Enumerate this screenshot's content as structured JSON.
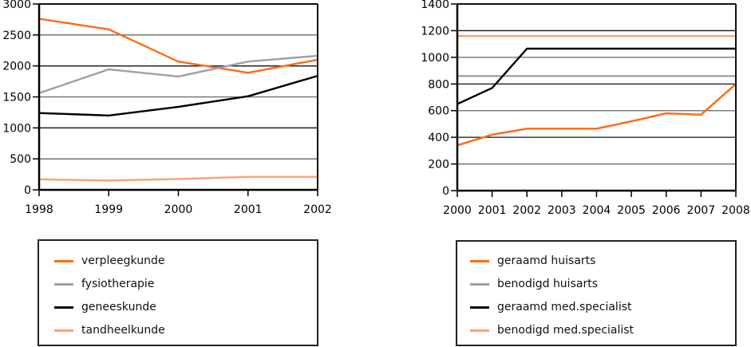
{
  "chart_data": [
    {
      "type": "line",
      "title": "",
      "xlabel": "",
      "ylabel": "",
      "x": [
        "1998",
        "1999",
        "2000",
        "2001",
        "2002"
      ],
      "ylim": [
        0,
        3000
      ],
      "yticks": [
        "0",
        "500",
        "1000",
        "1500",
        "2000",
        "2500",
        "3000"
      ],
      "grid": true,
      "legend_position": "bottom",
      "series": [
        {
          "name": "verpleegkunde",
          "color": "#FF6A13",
          "values": [
            2760,
            2590,
            2070,
            1890,
            2100
          ]
        },
        {
          "name": "fysiotherapie",
          "color": "#A0A0A0",
          "values": [
            1560,
            1945,
            1830,
            2070,
            2165
          ]
        },
        {
          "name": "geneeskunde",
          "color": "#000000",
          "values": [
            1240,
            1200,
            1340,
            1510,
            1840
          ]
        },
        {
          "name": "tandheelkunde",
          "color": "#FFA070",
          "values": [
            170,
            150,
            175,
            210,
            210
          ]
        }
      ]
    },
    {
      "type": "line",
      "title": "",
      "xlabel": "",
      "ylabel": "",
      "x": [
        "2000",
        "2001",
        "2002",
        "2003",
        "2004",
        "2005",
        "2006",
        "2007",
        "2008"
      ],
      "ylim": [
        0,
        1400
      ],
      "yticks": [
        "0",
        "200",
        "400",
        "600",
        "800",
        "1000",
        "1200",
        "1400"
      ],
      "grid": true,
      "legend_position": "bottom",
      "series": [
        {
          "name": "geraamd huisarts",
          "color": "#FF6A13",
          "values": [
            340,
            420,
            465,
            465,
            465,
            520,
            580,
            570,
            800
          ]
        },
        {
          "name": "benodigd huisarts",
          "color": "#A0A0A0",
          "values": [
            860,
            860,
            860,
            860,
            860,
            860,
            860,
            860,
            860
          ]
        },
        {
          "name": "geraamd med.specialist",
          "color": "#000000",
          "values": [
            650,
            770,
            1065,
            1065,
            1065,
            1065,
            1065,
            1065,
            1065
          ]
        },
        {
          "name": "benodigd med.specialist",
          "color": "#FFA070",
          "values": [
            1160,
            1160,
            1160,
            1160,
            1160,
            1160,
            1160,
            1160,
            1160
          ]
        }
      ]
    }
  ]
}
